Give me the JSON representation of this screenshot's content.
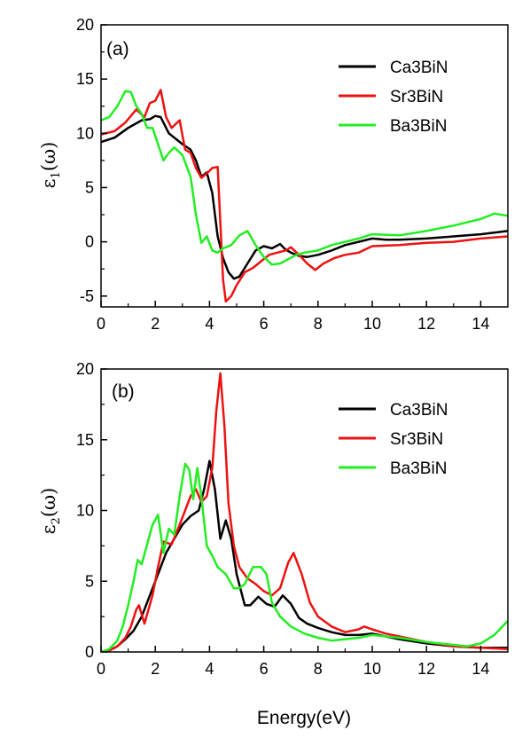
{
  "figure": {
    "xlabel": "Energy(eV)"
  },
  "chart_data": [
    {
      "type": "line",
      "panel_label": "(a)",
      "ylabel": "ε1(ω)",
      "ylabel_main": "ε",
      "ylabel_sub": "1",
      "ylabel_tail": "(ω)",
      "xlim": [
        0,
        15
      ],
      "ylim": [
        -6,
        20
      ],
      "xticks": [
        0,
        2,
        4,
        6,
        8,
        10,
        12,
        14
      ],
      "yticks": [
        -5,
        0,
        5,
        10,
        15,
        20
      ],
      "xtick_labels": [
        "0",
        "2",
        "4",
        "6",
        "8",
        "10",
        "12",
        "14"
      ],
      "ytick_labels": [
        "-5",
        "0",
        "5",
        "10",
        "15",
        "20"
      ],
      "legend_position": "top-right",
      "series": [
        {
          "name": "Ca3BiN",
          "color": "#000000",
          "x": [
            0,
            0.5,
            1.0,
            1.5,
            1.8,
            2.0,
            2.2,
            2.5,
            2.8,
            3.0,
            3.3,
            3.5,
            3.7,
            3.9,
            4.1,
            4.3,
            4.5,
            4.7,
            4.9,
            5.1,
            5.4,
            5.7,
            6.0,
            6.3,
            6.6,
            6.8,
            7.0,
            7.3,
            7.6,
            8.0,
            8.5,
            9.0,
            9.5,
            10.0,
            10.5,
            11.0,
            12.0,
            13.0,
            14.0,
            15.0
          ],
          "y": [
            9.2,
            9.6,
            10.5,
            11.2,
            11.3,
            11.6,
            11.5,
            10.0,
            9.4,
            9.0,
            8.5,
            7.5,
            6.0,
            6.4,
            4.5,
            0.5,
            -1.5,
            -2.8,
            -3.4,
            -3.2,
            -2.0,
            -0.8,
            -0.4,
            -0.6,
            -0.2,
            -0.7,
            -1.0,
            -1.3,
            -1.4,
            -1.2,
            -0.8,
            -0.3,
            0.0,
            0.3,
            0.2,
            0.2,
            0.3,
            0.5,
            0.7,
            1.0
          ]
        },
        {
          "name": "Sr3BiN",
          "color": "#ee1111",
          "x": [
            0,
            0.5,
            0.9,
            1.3,
            1.6,
            1.8,
            2.0,
            2.2,
            2.4,
            2.6,
            2.9,
            3.1,
            3.3,
            3.5,
            3.7,
            3.9,
            4.1,
            4.3,
            4.5,
            4.6,
            4.8,
            5.0,
            5.3,
            5.6,
            5.9,
            6.2,
            6.5,
            6.8,
            7.0,
            7.3,
            7.6,
            7.9,
            8.2,
            8.6,
            9.0,
            9.5,
            10.0,
            11.0,
            12.0,
            13.0,
            14.0,
            15.0
          ],
          "y": [
            9.9,
            10.2,
            11.0,
            12.2,
            11.5,
            12.8,
            13.0,
            14.0,
            11.5,
            10.5,
            11.2,
            8.5,
            8.2,
            6.8,
            5.9,
            6.3,
            6.8,
            6.9,
            -3.5,
            -5.5,
            -5.0,
            -4.0,
            -2.8,
            -2.4,
            -1.8,
            -1.2,
            -1.0,
            -0.8,
            -0.5,
            -1.2,
            -2.0,
            -2.6,
            -2.0,
            -1.5,
            -1.2,
            -1.0,
            -0.4,
            -0.3,
            -0.1,
            0.0,
            0.3,
            0.5
          ]
        },
        {
          "name": "Ba3BiN",
          "color": "#22ee22",
          "x": [
            0,
            0.3,
            0.6,
            0.9,
            1.1,
            1.3,
            1.5,
            1.7,
            1.9,
            2.1,
            2.3,
            2.5,
            2.7,
            3.0,
            3.3,
            3.5,
            3.7,
            3.9,
            4.1,
            4.3,
            4.5,
            4.8,
            5.1,
            5.4,
            5.7,
            6.0,
            6.3,
            6.6,
            6.9,
            7.2,
            7.5,
            8.0,
            8.5,
            9.0,
            9.5,
            10.0,
            11.0,
            12.0,
            13.0,
            14.0,
            14.5,
            15.0
          ],
          "y": [
            11.2,
            11.5,
            12.5,
            13.9,
            13.8,
            12.5,
            11.8,
            10.5,
            10.5,
            9.0,
            7.5,
            8.2,
            8.7,
            8.0,
            6.0,
            2.5,
            -0.1,
            0.5,
            -0.8,
            -1.0,
            -0.6,
            -0.3,
            0.6,
            1.0,
            -0.3,
            -1.4,
            -2.1,
            -2.0,
            -1.6,
            -1.2,
            -1.0,
            -0.8,
            -0.3,
            0.0,
            0.3,
            0.7,
            0.6,
            1.0,
            1.5,
            2.1,
            2.6,
            2.4
          ]
        }
      ]
    },
    {
      "type": "line",
      "panel_label": "(b)",
      "ylabel": "ε2(ω)",
      "ylabel_main": "ε",
      "ylabel_sub": "2",
      "ylabel_tail": "(ω)",
      "xlim": [
        0,
        15
      ],
      "ylim": [
        0,
        20
      ],
      "xticks": [
        0,
        2,
        4,
        6,
        8,
        10,
        12,
        14
      ],
      "yticks": [
        0,
        5,
        10,
        15,
        20
      ],
      "xtick_labels": [
        "0",
        "2",
        "4",
        "6",
        "8",
        "10",
        "12",
        "14"
      ],
      "ytick_labels": [
        "0",
        "5",
        "10",
        "15",
        "20"
      ],
      "legend_position": "top-right",
      "series": [
        {
          "name": "Ca3BiN",
          "color": "#000000",
          "x": [
            0,
            0.3,
            0.6,
            0.9,
            1.2,
            1.5,
            1.8,
            2.1,
            2.4,
            2.7,
            3.0,
            3.3,
            3.6,
            3.8,
            4.0,
            4.2,
            4.4,
            4.6,
            4.8,
            5.0,
            5.3,
            5.5,
            5.8,
            6.1,
            6.4,
            6.7,
            7.0,
            7.3,
            7.6,
            8.0,
            8.5,
            9.0,
            9.5,
            10.0,
            10.5,
            11.0,
            12.0,
            13.0,
            14.0,
            15.0
          ],
          "y": [
            0,
            0.1,
            0.4,
            0.9,
            1.5,
            2.5,
            4.0,
            5.5,
            7.0,
            8.0,
            9.0,
            9.6,
            10.0,
            11.5,
            13.5,
            11.5,
            8.0,
            9.3,
            8.0,
            5.5,
            3.3,
            3.3,
            3.9,
            3.4,
            3.2,
            4.0,
            3.4,
            2.4,
            2.0,
            1.7,
            1.4,
            1.2,
            1.2,
            1.3,
            1.1,
            0.9,
            0.6,
            0.4,
            0.3,
            0.3
          ]
        },
        {
          "name": "Sr3BiN",
          "color": "#ee1111",
          "x": [
            0,
            0.3,
            0.6,
            0.9,
            1.1,
            1.3,
            1.4,
            1.6,
            1.9,
            2.1,
            2.3,
            2.6,
            2.9,
            3.1,
            3.3,
            3.5,
            3.7,
            3.9,
            4.1,
            4.25,
            4.4,
            4.55,
            4.7,
            4.9,
            5.1,
            5.4,
            5.7,
            6.0,
            6.3,
            6.6,
            6.9,
            7.1,
            7.4,
            7.7,
            8.0,
            8.5,
            9.0,
            9.5,
            9.7,
            10.0,
            10.5,
            11.0,
            12.0,
            13.0,
            14.0,
            15.0
          ],
          "y": [
            0,
            0.1,
            0.4,
            1.0,
            1.8,
            3.0,
            3.3,
            2.0,
            4.0,
            6.0,
            7.8,
            7.6,
            9.0,
            10.0,
            11.0,
            11.5,
            10.6,
            11.0,
            13.0,
            17.0,
            19.7,
            16.0,
            10.5,
            7.5,
            6.0,
            5.2,
            4.8,
            4.3,
            4.0,
            4.5,
            6.3,
            7.0,
            5.5,
            3.5,
            2.5,
            1.8,
            1.4,
            1.6,
            1.8,
            1.6,
            1.3,
            1.1,
            0.7,
            0.4,
            0.3,
            0.2
          ]
        },
        {
          "name": "Ba3BiN",
          "color": "#22ee22",
          "x": [
            0,
            0.3,
            0.6,
            0.8,
            1.0,
            1.2,
            1.35,
            1.5,
            1.7,
            1.9,
            2.1,
            2.3,
            2.5,
            2.7,
            2.9,
            3.1,
            3.25,
            3.4,
            3.55,
            3.7,
            3.9,
            4.1,
            4.3,
            4.6,
            4.9,
            5.1,
            5.3,
            5.6,
            5.9,
            6.1,
            6.3,
            6.6,
            7.0,
            7.5,
            8.0,
            8.5,
            9.0,
            9.5,
            10.0,
            11.0,
            12.0,
            13.0,
            13.5,
            14.0,
            14.5,
            15.0
          ],
          "y": [
            0,
            0.2,
            0.8,
            1.8,
            3.3,
            5.0,
            6.5,
            6.2,
            7.6,
            9.0,
            9.7,
            7.0,
            8.7,
            8.3,
            11.0,
            13.3,
            12.9,
            10.8,
            13.0,
            11.0,
            7.5,
            6.8,
            6.0,
            5.5,
            4.5,
            4.5,
            4.8,
            6.0,
            6.0,
            5.5,
            3.5,
            2.5,
            1.8,
            1.3,
            1.0,
            0.8,
            0.9,
            1.0,
            1.2,
            1.0,
            0.7,
            0.5,
            0.4,
            0.6,
            1.2,
            2.2
          ]
        }
      ]
    }
  ]
}
